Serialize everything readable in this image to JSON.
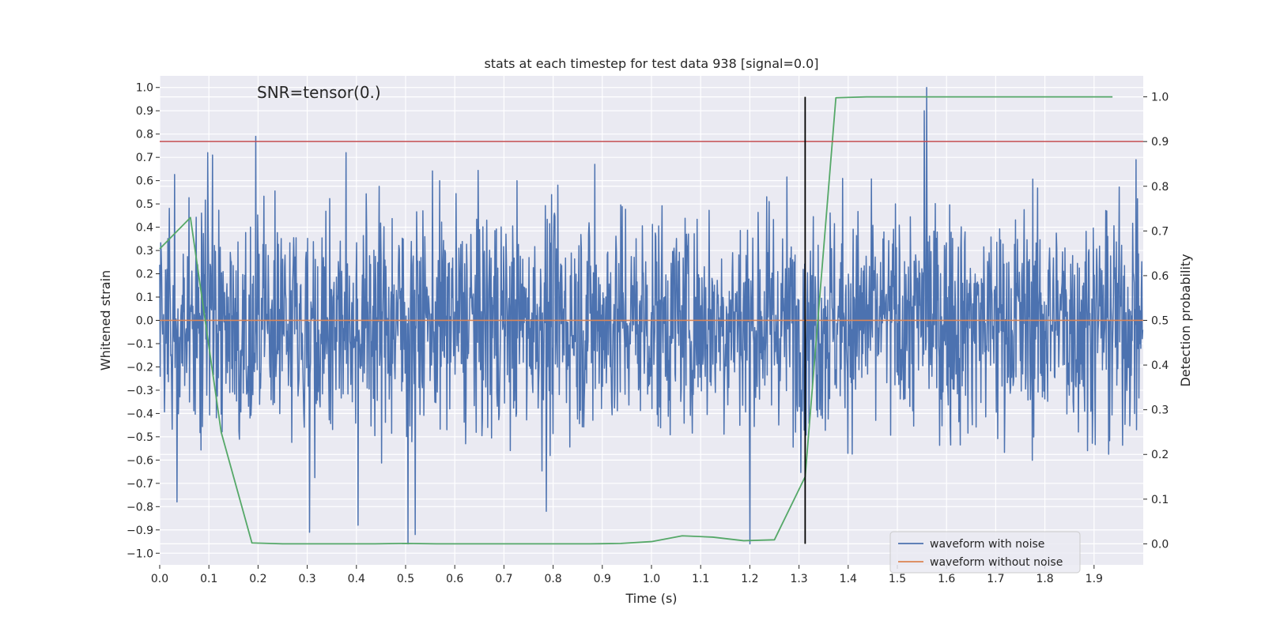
{
  "chart_data": {
    "type": "line",
    "title": "stats at each timestep for test data 938 [signal=0.0]",
    "xlabel": "Time (s)",
    "ylabel": "Whitened strain",
    "y2label": "Detection probability",
    "annotation": "SNR=tensor(0.)",
    "xlim": [
      0,
      2.0
    ],
    "ylim": [
      -1.05,
      1.05
    ],
    "y2lim": [
      -0.047,
      1.047
    ],
    "x_ticks": [
      0.0,
      0.1,
      0.2,
      0.3,
      0.4,
      0.5,
      0.6,
      0.7,
      0.8,
      0.9,
      1.0,
      1.1,
      1.2,
      1.3,
      1.4,
      1.5,
      1.6,
      1.7,
      1.8,
      1.9
    ],
    "x_tick_labels": [
      "0.0",
      "0.1",
      "0.2",
      "0.3",
      "0.4",
      "0.5",
      "0.6",
      "0.7",
      "0.8",
      "0.9",
      "1.0",
      "1.1",
      "1.2",
      "1.3",
      "1.4",
      "1.5",
      "1.6",
      "1.7",
      "1.8",
      "1.9"
    ],
    "y_ticks": [
      -1.0,
      -0.9,
      -0.8,
      -0.7,
      -0.6,
      -0.5,
      -0.4,
      -0.3,
      -0.2,
      -0.1,
      0.0,
      0.1,
      0.2,
      0.3,
      0.4,
      0.5,
      0.6,
      0.7,
      0.8,
      0.9,
      1.0
    ],
    "y_tick_labels": [
      "−1.0",
      "−0.9",
      "−0.8",
      "−0.7",
      "−0.6",
      "−0.5",
      "−0.4",
      "−0.3",
      "−0.2",
      "−0.1",
      "0.0",
      "0.1",
      "0.2",
      "0.3",
      "0.4",
      "0.5",
      "0.6",
      "0.7",
      "0.8",
      "0.9",
      "1.0"
    ],
    "y2_ticks": [
      0.0,
      0.1,
      0.2,
      0.3,
      0.4,
      0.5,
      0.6,
      0.7,
      0.8,
      0.9,
      1.0
    ],
    "y2_tick_labels": [
      "0.0",
      "0.1",
      "0.2",
      "0.3",
      "0.4",
      "0.5",
      "0.6",
      "0.7",
      "0.8",
      "0.9",
      "1.0"
    ],
    "grid": true,
    "legend": {
      "placement": "lower-right",
      "entries": [
        {
          "label": "waveform with noise",
          "color": "#4c72b0"
        },
        {
          "label": "waveform without noise",
          "color": "#dd8452"
        }
      ]
    },
    "series": [
      {
        "name": "waveform with noise",
        "axis": "left",
        "color": "#4c72b0",
        "style": "dense noise",
        "x_range": [
          0.0,
          2.0
        ],
        "samples": 2048,
        "typical_range": [
          -0.5,
          0.5
        ],
        "peaks": [
          {
            "x": 0.195,
            "y": 0.79
          },
          {
            "x": 0.305,
            "y": -0.91
          },
          {
            "x": 0.505,
            "y": -0.96
          },
          {
            "x": 0.52,
            "y": -0.92
          },
          {
            "x": 1.2,
            "y": -0.96
          },
          {
            "x": 1.555,
            "y": 0.9
          },
          {
            "x": 1.56,
            "y": 1.0
          },
          {
            "x": 0.107,
            "y": 0.71
          },
          {
            "x": 0.885,
            "y": 0.67
          },
          {
            "x": 0.035,
            "y": -0.78
          },
          {
            "x": 0.403,
            "y": -0.88
          },
          {
            "x": 0.786,
            "y": -0.82
          },
          {
            "x": 1.985,
            "y": 0.69
          }
        ]
      },
      {
        "name": "waveform without noise",
        "axis": "left",
        "color": "#dd8452",
        "x": [
          0.0,
          2.0
        ],
        "y": [
          0.0,
          0.0
        ]
      },
      {
        "name": "detection probability",
        "axis": "right",
        "color": "#55a868",
        "x": [
          0.0,
          0.0625,
          0.125,
          0.1875,
          0.25,
          0.3125,
          0.375,
          0.4375,
          0.5,
          0.5625,
          0.625,
          0.6875,
          0.75,
          0.8125,
          0.875,
          0.9375,
          1.0,
          1.0625,
          1.125,
          1.1875,
          1.25,
          1.3125,
          1.375,
          1.4375,
          1.5,
          1.5625,
          1.625,
          1.6875,
          1.75,
          1.8125,
          1.875,
          1.9375
        ],
        "y": [
          0.66,
          0.73,
          0.25,
          0.002,
          0.0,
          0.0,
          0.0,
          0.0,
          0.001,
          0.0,
          0.0,
          0.0,
          0.0,
          0.0,
          0.0,
          0.001,
          0.005,
          0.018,
          0.015,
          0.007,
          0.009,
          0.15,
          0.998,
          1.0,
          1.0,
          1.0,
          1.0,
          1.0,
          1.0,
          1.0,
          1.0,
          1.0
        ]
      }
    ],
    "reference_lines": [
      {
        "kind": "horizontal",
        "axis": "right",
        "y": 0.9,
        "color": "#c44e52"
      },
      {
        "kind": "vertical",
        "x": 1.3125,
        "y_range": [
          0.0,
          1.0
        ],
        "color": "#000000"
      }
    ]
  }
}
